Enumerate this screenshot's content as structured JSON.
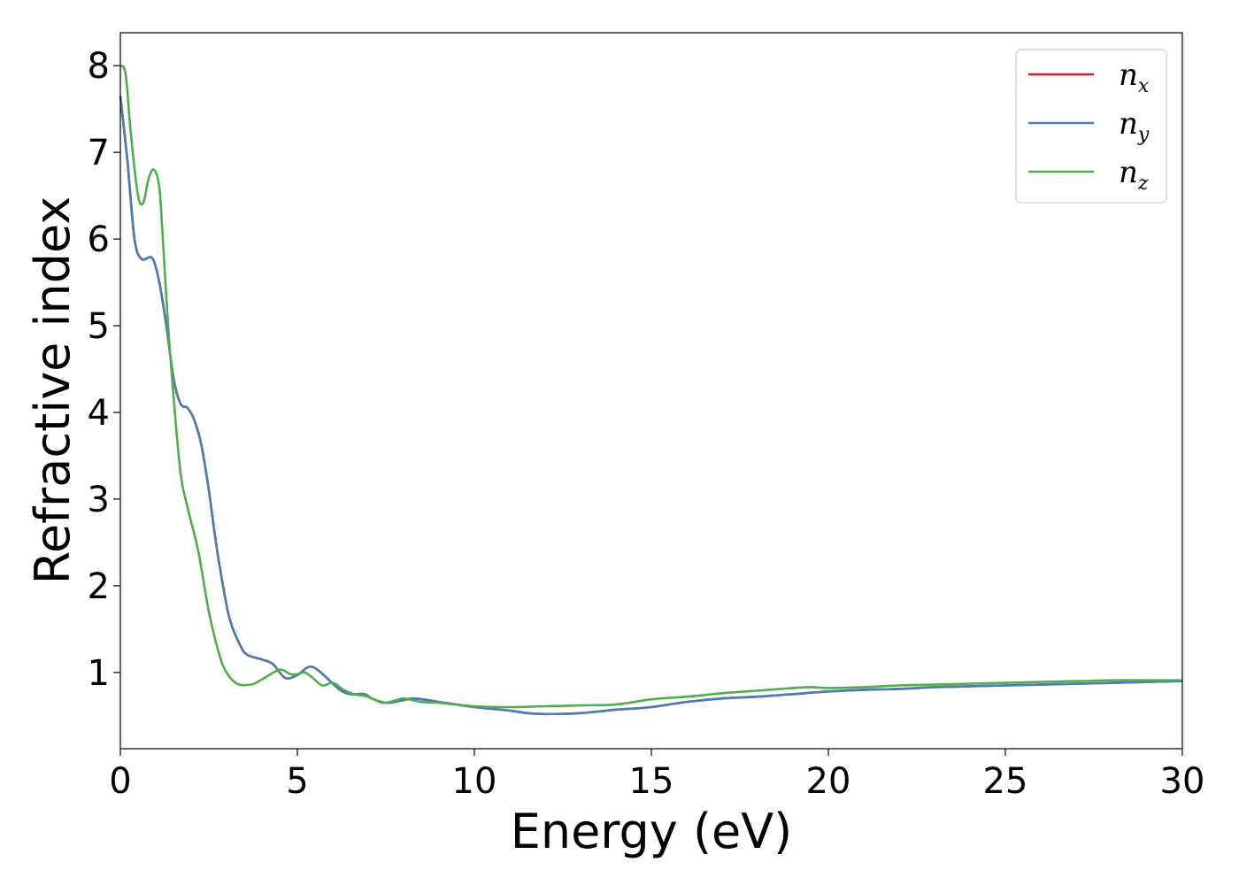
{
  "chart_data": {
    "type": "line",
    "title": "",
    "xlabel": "Energy (eV)",
    "ylabel": "Refractive index",
    "xlim": [
      0,
      30
    ],
    "ylim": [
      0.12,
      8.38
    ],
    "x_ticks": [
      0,
      5,
      10,
      15,
      20,
      25,
      30
    ],
    "y_ticks": [
      1,
      2,
      3,
      4,
      5,
      6,
      7,
      8
    ],
    "grid": false,
    "legend_position": "top-right",
    "series": [
      {
        "name": "n",
        "subscript": "x",
        "color": "#e41a1c",
        "points": [
          [
            0,
            7.65
          ],
          [
            0.2,
            6.9
          ],
          [
            0.4,
            6.0
          ],
          [
            0.6,
            5.77
          ],
          [
            0.9,
            5.78
          ],
          [
            1.1,
            5.5
          ],
          [
            1.3,
            5.0
          ],
          [
            1.5,
            4.4
          ],
          [
            1.7,
            4.1
          ],
          [
            1.9,
            4.05
          ],
          [
            2.1,
            3.9
          ],
          [
            2.3,
            3.6
          ],
          [
            2.5,
            3.1
          ],
          [
            2.7,
            2.5
          ],
          [
            2.9,
            2.0
          ],
          [
            3.1,
            1.6
          ],
          [
            3.4,
            1.3
          ],
          [
            3.6,
            1.2
          ],
          [
            4.0,
            1.15
          ],
          [
            4.3,
            1.1
          ],
          [
            4.5,
            1.0
          ],
          [
            4.7,
            0.93
          ],
          [
            5.0,
            0.97
          ],
          [
            5.3,
            1.06
          ],
          [
            5.5,
            1.05
          ],
          [
            5.8,
            0.95
          ],
          [
            6.2,
            0.8
          ],
          [
            6.5,
            0.75
          ],
          [
            6.9,
            0.75
          ],
          [
            7.1,
            0.7
          ],
          [
            7.5,
            0.65
          ],
          [
            8.0,
            0.68
          ],
          [
            8.3,
            0.7
          ],
          [
            9.0,
            0.66
          ],
          [
            10.0,
            0.6
          ],
          [
            11.0,
            0.56
          ],
          [
            11.5,
            0.53
          ],
          [
            12.0,
            0.52
          ],
          [
            13.0,
            0.53
          ],
          [
            14.0,
            0.57
          ],
          [
            15.0,
            0.6
          ],
          [
            16.0,
            0.66
          ],
          [
            17.0,
            0.7
          ],
          [
            18.0,
            0.72
          ],
          [
            19.0,
            0.75
          ],
          [
            20.0,
            0.78
          ],
          [
            21.0,
            0.8
          ],
          [
            22.0,
            0.81
          ],
          [
            23.0,
            0.83
          ],
          [
            24.0,
            0.84
          ],
          [
            25.0,
            0.85
          ],
          [
            26.0,
            0.86
          ],
          [
            27.0,
            0.87
          ],
          [
            28.0,
            0.88
          ],
          [
            29.0,
            0.89
          ],
          [
            30.0,
            0.9
          ]
        ]
      },
      {
        "name": "n",
        "subscript": "y",
        "color": "#4a7cb8",
        "points": [
          [
            0,
            7.65
          ],
          [
            0.2,
            6.9
          ],
          [
            0.4,
            6.0
          ],
          [
            0.6,
            5.77
          ],
          [
            0.9,
            5.78
          ],
          [
            1.1,
            5.5
          ],
          [
            1.3,
            5.0
          ],
          [
            1.5,
            4.4
          ],
          [
            1.7,
            4.1
          ],
          [
            1.9,
            4.05
          ],
          [
            2.1,
            3.9
          ],
          [
            2.3,
            3.6
          ],
          [
            2.5,
            3.1
          ],
          [
            2.7,
            2.5
          ],
          [
            2.9,
            2.0
          ],
          [
            3.1,
            1.6
          ],
          [
            3.4,
            1.3
          ],
          [
            3.6,
            1.2
          ],
          [
            4.0,
            1.15
          ],
          [
            4.3,
            1.1
          ],
          [
            4.5,
            1.0
          ],
          [
            4.7,
            0.93
          ],
          [
            5.0,
            0.97
          ],
          [
            5.3,
            1.06
          ],
          [
            5.5,
            1.05
          ],
          [
            5.8,
            0.95
          ],
          [
            6.2,
            0.8
          ],
          [
            6.5,
            0.75
          ],
          [
            6.9,
            0.75
          ],
          [
            7.1,
            0.7
          ],
          [
            7.5,
            0.65
          ],
          [
            8.0,
            0.68
          ],
          [
            8.3,
            0.7
          ],
          [
            9.0,
            0.66
          ],
          [
            10.0,
            0.6
          ],
          [
            11.0,
            0.56
          ],
          [
            11.5,
            0.53
          ],
          [
            12.0,
            0.52
          ],
          [
            13.0,
            0.53
          ],
          [
            14.0,
            0.57
          ],
          [
            15.0,
            0.6
          ],
          [
            16.0,
            0.66
          ],
          [
            17.0,
            0.7
          ],
          [
            18.0,
            0.72
          ],
          [
            19.0,
            0.75
          ],
          [
            20.0,
            0.78
          ],
          [
            21.0,
            0.8
          ],
          [
            22.0,
            0.81
          ],
          [
            23.0,
            0.83
          ],
          [
            24.0,
            0.84
          ],
          [
            25.0,
            0.85
          ],
          [
            26.0,
            0.86
          ],
          [
            27.0,
            0.87
          ],
          [
            28.0,
            0.88
          ],
          [
            29.0,
            0.89
          ],
          [
            30.0,
            0.9
          ]
        ]
      },
      {
        "name": "n",
        "subscript": "z",
        "color": "#4daf4a",
        "points": [
          [
            0,
            8.0
          ],
          [
            0.15,
            7.9
          ],
          [
            0.3,
            7.2
          ],
          [
            0.5,
            6.5
          ],
          [
            0.65,
            6.42
          ],
          [
            0.8,
            6.7
          ],
          [
            0.95,
            6.8
          ],
          [
            1.1,
            6.6
          ],
          [
            1.2,
            6.0
          ],
          [
            1.35,
            5.0
          ],
          [
            1.5,
            4.2
          ],
          [
            1.7,
            3.3
          ],
          [
            1.9,
            2.9
          ],
          [
            2.2,
            2.4
          ],
          [
            2.5,
            1.7
          ],
          [
            2.8,
            1.2
          ],
          [
            3.0,
            1.0
          ],
          [
            3.3,
            0.87
          ],
          [
            3.7,
            0.86
          ],
          [
            4.0,
            0.92
          ],
          [
            4.5,
            1.03
          ],
          [
            4.8,
            0.98
          ],
          [
            5.0,
            0.98
          ],
          [
            5.2,
            1.0
          ],
          [
            5.4,
            0.95
          ],
          [
            5.7,
            0.85
          ],
          [
            6.0,
            0.88
          ],
          [
            6.3,
            0.8
          ],
          [
            6.6,
            0.75
          ],
          [
            7.0,
            0.72
          ],
          [
            7.4,
            0.65
          ],
          [
            7.8,
            0.68
          ],
          [
            8.0,
            0.7
          ],
          [
            8.5,
            0.66
          ],
          [
            9.0,
            0.65
          ],
          [
            10.0,
            0.61
          ],
          [
            11.0,
            0.6
          ],
          [
            12.0,
            0.61
          ],
          [
            13.0,
            0.62
          ],
          [
            14.0,
            0.63
          ],
          [
            15.0,
            0.69
          ],
          [
            16.0,
            0.72
          ],
          [
            17.0,
            0.76
          ],
          [
            18.0,
            0.79
          ],
          [
            19.0,
            0.82
          ],
          [
            19.5,
            0.83
          ],
          [
            20.0,
            0.82
          ],
          [
            21.0,
            0.83
          ],
          [
            22.0,
            0.85
          ],
          [
            23.0,
            0.86
          ],
          [
            24.0,
            0.87
          ],
          [
            25.0,
            0.88
          ],
          [
            26.0,
            0.89
          ],
          [
            27.0,
            0.9
          ],
          [
            28.0,
            0.91
          ],
          [
            29.0,
            0.91
          ],
          [
            30.0,
            0.91
          ]
        ]
      }
    ]
  }
}
